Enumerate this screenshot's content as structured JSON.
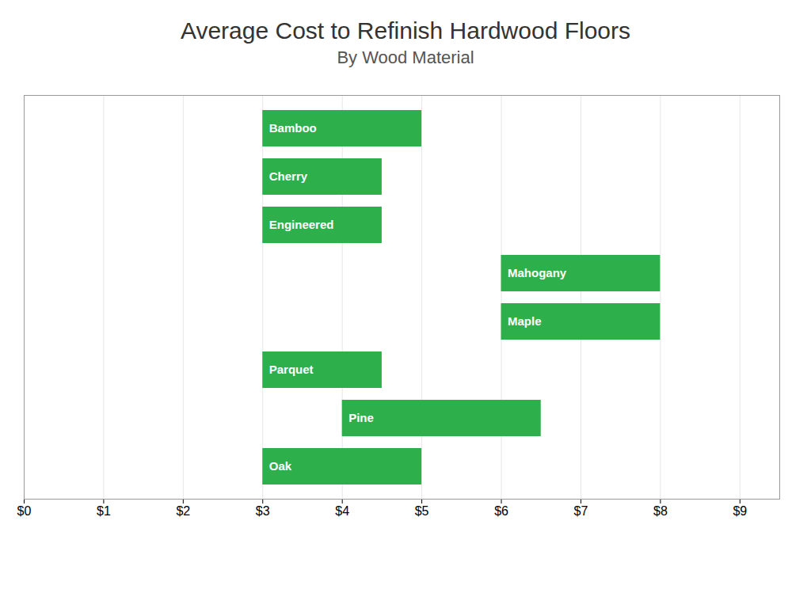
{
  "chart_data": {
    "type": "bar",
    "orientation": "horizontal",
    "title": "Average Cost to Refinish Hardwood Floors",
    "subtitle": "By Wood Material",
    "categories": [
      "Bamboo",
      "Cherry",
      "Engineered",
      "Mahogany",
      "Maple",
      "Parquet",
      "Pine",
      "Oak"
    ],
    "values": [
      [
        3.0,
        5.0
      ],
      [
        3.0,
        4.5
      ],
      [
        3.0,
        4.5
      ],
      [
        6.0,
        8.0
      ],
      [
        6.0,
        8.0
      ],
      [
        3.0,
        4.5
      ],
      [
        4.0,
        6.5
      ],
      [
        3.0,
        5.0
      ]
    ],
    "color": "#2db04b",
    "xlim": [
      0,
      9.5
    ],
    "xticks": [
      {
        "value": 0,
        "label": "$0"
      },
      {
        "value": 1,
        "label": "$1"
      },
      {
        "value": 2,
        "label": "$2"
      },
      {
        "value": 3,
        "label": "$3"
      },
      {
        "value": 4,
        "label": "$4"
      },
      {
        "value": 5,
        "label": "$5"
      },
      {
        "value": 6,
        "label": "$6"
      },
      {
        "value": 7,
        "label": "$7"
      },
      {
        "value": 8,
        "label": "$8"
      },
      {
        "value": 9,
        "label": "$9"
      }
    ],
    "grid": true,
    "tick_labels": "x"
  }
}
